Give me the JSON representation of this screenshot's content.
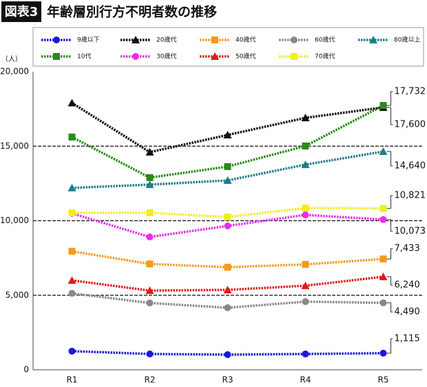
{
  "chart_data": {
    "type": "line",
    "badge": "図表3",
    "title": "年齢層別行方不明者数の推移",
    "y_label": "（人）",
    "categories": [
      "R1",
      "R2",
      "R3",
      "R4",
      "R5"
    ],
    "ylim": [
      0,
      20000
    ],
    "yticks": [
      {
        "value": 0,
        "label": "0"
      },
      {
        "value": 5000,
        "label": "5,000"
      },
      {
        "value": 10000,
        "label": "10,000"
      },
      {
        "value": 15000,
        "label": "15,000"
      },
      {
        "value": 20000,
        "label": "20,000"
      }
    ],
    "grid": true,
    "series": [
      {
        "name": "9歳以下",
        "color": "#1a1ad6",
        "marker": "circle",
        "values": [
          1250,
          1060,
          1015,
          1060,
          1115
        ],
        "value_labels": [
          null,
          null,
          null,
          null,
          "1,115"
        ]
      },
      {
        "name": "20歳代",
        "color": "#111111",
        "marker": "triangle",
        "values": [
          17900,
          14600,
          15750,
          16900,
          17600
        ],
        "value_labels": [
          null,
          null,
          null,
          null,
          "17,600"
        ]
      },
      {
        "name": "40歳代",
        "color": "#f39a1c",
        "marker": "square",
        "values": [
          7950,
          7100,
          6880,
          7070,
          7433
        ],
        "value_labels": [
          null,
          null,
          null,
          null,
          "7,433"
        ]
      },
      {
        "name": "60歳代",
        "color": "#888888",
        "marker": "circle",
        "values": [
          5130,
          4480,
          4160,
          4570,
          4490
        ],
        "value_labels": [
          null,
          null,
          null,
          null,
          "4,490"
        ]
      },
      {
        "name": "80歳以上",
        "color": "#1a7f8a",
        "marker": "triangle",
        "values": [
          12200,
          12420,
          12700,
          13760,
          14640
        ],
        "value_labels": [
          null,
          null,
          null,
          null,
          "14,640"
        ]
      },
      {
        "name": "10代",
        "color": "#2a8a1a",
        "marker": "square",
        "values": [
          15610,
          12890,
          13630,
          15010,
          17732
        ],
        "value_labels": [
          null,
          null,
          null,
          null,
          "17,732"
        ]
      },
      {
        "name": "30歳代",
        "color": "#e82ee8",
        "marker": "circle",
        "values": [
          10490,
          8910,
          9650,
          10390,
          10073
        ],
        "value_labels": [
          null,
          null,
          null,
          null,
          "10,073"
        ]
      },
      {
        "name": "50歳代",
        "color": "#e01a1a",
        "marker": "triangle",
        "values": [
          6000,
          5310,
          5360,
          5640,
          6240
        ],
        "value_labels": [
          null,
          null,
          null,
          null,
          "6,240"
        ]
      },
      {
        "name": "70歳代",
        "color": "#f2ee1a",
        "marker": "square",
        "values": [
          10530,
          10530,
          10250,
          10850,
          10821
        ],
        "value_labels": [
          null,
          null,
          null,
          null,
          "10,821"
        ]
      }
    ]
  }
}
